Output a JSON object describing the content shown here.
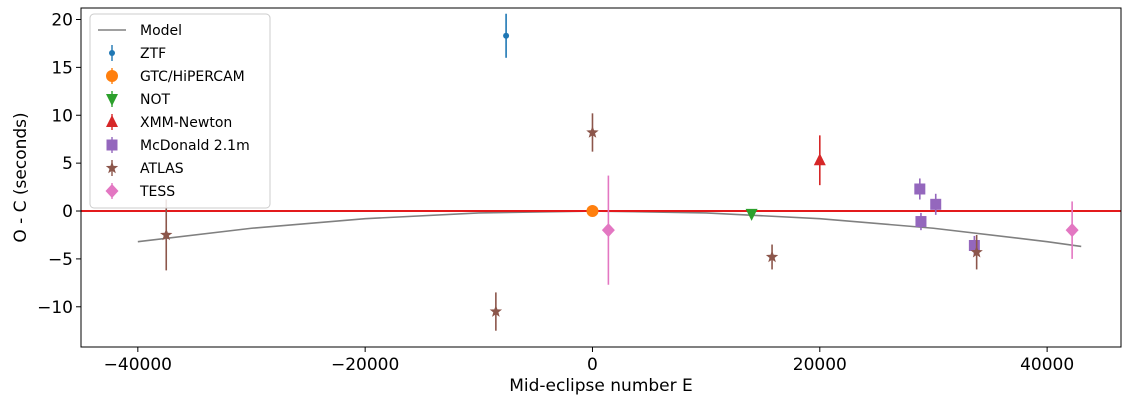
{
  "chart_data": {
    "type": "scatter",
    "xlabel": "Mid-eclipse number E",
    "ylabel": "O - C (seconds)",
    "xlim": [
      -45000,
      46500
    ],
    "ylim": [
      -14.2,
      21.2
    ],
    "xticks": [
      -40000,
      -20000,
      0,
      20000,
      40000
    ],
    "xtick_labels": [
      "−40000",
      "−20000",
      "0",
      "20000",
      "40000"
    ],
    "yticks": [
      -10,
      -5,
      0,
      5,
      10,
      15,
      20
    ],
    "ytick_labels": [
      "−10",
      "−5",
      "0",
      "5",
      "10",
      "15",
      "20"
    ],
    "grid": false,
    "legend_position": "top-left",
    "zero_line": {
      "y": 0,
      "color": "#e31a1c"
    },
    "model": {
      "name": "Model",
      "color": "#808080",
      "x": [
        -40000,
        -30000,
        -20000,
        -10000,
        0,
        10000,
        20000,
        30000,
        40000,
        43000
      ],
      "y": [
        -3.2,
        -1.8,
        -0.8,
        -0.2,
        0.0,
        -0.2,
        -0.8,
        -1.8,
        -3.2,
        -3.7
      ]
    },
    "series": [
      {
        "name": "ZTF",
        "color": "#1f77b4",
        "marker": "dot",
        "x": [
          -7600
        ],
        "y": [
          18.3
        ],
        "yerr": [
          2.3
        ]
      },
      {
        "name": "GTC/HiPERCAM",
        "color": "#ff7f0e",
        "marker": "circle",
        "x": [
          0
        ],
        "y": [
          0.0
        ],
        "yerr": [
          0.0
        ]
      },
      {
        "name": "NOT",
        "color": "#2ca02c",
        "marker": "triangle-down",
        "x": [
          14000
        ],
        "y": [
          -0.3
        ],
        "yerr": [
          0.3
        ]
      },
      {
        "name": "XMM-Newton",
        "color": "#d62728",
        "marker": "triangle-up",
        "x": [
          20000
        ],
        "y": [
          5.3
        ],
        "yerr": [
          2.6
        ]
      },
      {
        "name": "McDonald 2.1m",
        "color": "#9467bd",
        "marker": "square",
        "x": [
          28800,
          30200,
          28900,
          33600
        ],
        "y": [
          2.3,
          0.7,
          -1.1,
          -3.6
        ],
        "yerr": [
          1.1,
          1.1,
          0.9,
          1.0
        ]
      },
      {
        "name": "ATLAS",
        "color": "#8c564b",
        "marker": "star",
        "x": [
          -37500,
          -8500,
          0,
          15800,
          33800
        ],
        "y": [
          -2.5,
          -10.5,
          8.2,
          -4.8,
          -4.3
        ],
        "yerr": [
          3.7,
          2.0,
          2.0,
          1.3,
          1.8
        ]
      },
      {
        "name": "TESS",
        "color": "#e377c2",
        "marker": "diamond",
        "x": [
          1400,
          42200
        ],
        "y": [
          -2.0,
          -2.0
        ],
        "yerr": [
          5.7,
          3.0
        ]
      }
    ]
  }
}
